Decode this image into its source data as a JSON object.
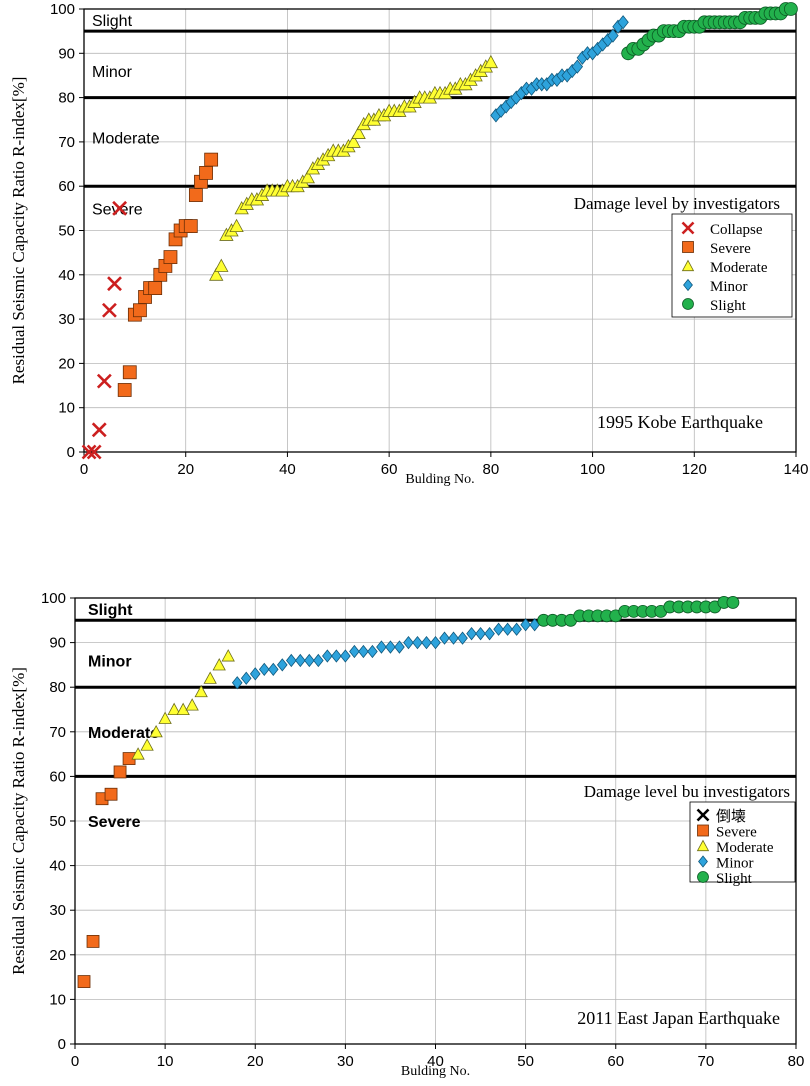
{
  "chart_data": [
    {
      "type": "scatter",
      "ylabel": "Residual Seismic Capacity Ratio R-index[%]",
      "xlabel": "Bulding No.",
      "xlim": [
        0,
        140
      ],
      "ylim": [
        0,
        100
      ],
      "x_ticks": [
        "0",
        "20",
        "40",
        "60",
        "80",
        "100",
        "120",
        "140"
      ],
      "y_ticks": [
        "0",
        "10",
        "20",
        "30",
        "40",
        "50",
        "60",
        "70",
        "80",
        "90",
        "100"
      ],
      "grid": true,
      "thresholds": [
        60,
        80,
        95
      ],
      "zones": [
        {
          "label": "Slight",
          "y": 97.5
        },
        {
          "label": "Minor",
          "y": 86
        },
        {
          "label": "Moderate",
          "y": 71
        },
        {
          "label": "Severe",
          "y": 55
        }
      ],
      "annotation": "1995 Kobe Earthquake",
      "legend_title": "Damage level by investigators",
      "legend_position": "right-middle",
      "series": [
        {
          "name": "Collapse",
          "marker": "x",
          "color": "#cc1f1f",
          "x": [
            1,
            2,
            3,
            4,
            5,
            6,
            7
          ],
          "y": [
            0,
            0,
            5,
            16,
            32,
            38,
            55
          ]
        },
        {
          "name": "Severe",
          "marker": "square",
          "color": "#f26a1b",
          "x": [
            8,
            9,
            10,
            11,
            12,
            13,
            14,
            15,
            16,
            17,
            18,
            19,
            20,
            21,
            22,
            23,
            24,
            25
          ],
          "y": [
            14,
            18,
            31,
            32,
            35,
            37,
            37,
            40,
            42,
            44,
            48,
            50,
            51,
            51,
            58,
            61,
            63,
            66
          ]
        },
        {
          "name": "Moderate",
          "marker": "triangle",
          "color": "#ffff33",
          "x": [
            26,
            27,
            28,
            29,
            30,
            31,
            32,
            33,
            34,
            35,
            36,
            37,
            38,
            39,
            40,
            41,
            42,
            43,
            44,
            45,
            46,
            47,
            48,
            49,
            50,
            51,
            52,
            53,
            54,
            55,
            56,
            57,
            58,
            59,
            60,
            61,
            62,
            63,
            64,
            65,
            66,
            67,
            68,
            69,
            70,
            71,
            72,
            73,
            74,
            75,
            76,
            77,
            78,
            79,
            80
          ],
          "y": [
            40,
            42,
            49,
            50,
            51,
            55,
            56,
            57,
            57,
            58,
            59,
            59,
            59,
            59,
            60,
            60,
            60,
            61,
            62,
            64,
            65,
            66,
            67,
            68,
            68,
            68,
            69,
            70,
            72,
            74,
            75,
            75,
            76,
            76,
            77,
            77,
            77,
            78,
            78,
            79,
            80,
            80,
            80,
            81,
            81,
            81,
            82,
            82,
            83,
            83,
            84,
            85,
            86,
            87,
            88
          ]
        },
        {
          "name": "Minor",
          "marker": "diamond",
          "color": "#2ea3dc",
          "x": [
            81,
            82,
            83,
            84,
            85,
            86,
            87,
            88,
            89,
            90,
            91,
            92,
            93,
            94,
            95,
            96,
            97,
            98,
            99,
            100,
            101,
            102,
            103,
            104,
            105,
            106
          ],
          "y": [
            76,
            77,
            78,
            79,
            80,
            81,
            82,
            82,
            83,
            83,
            83,
            84,
            84,
            85,
            85,
            86,
            87,
            89,
            90,
            90,
            91,
            92,
            93,
            94,
            96,
            97
          ]
        },
        {
          "name": "Slight",
          "marker": "circle",
          "color": "#22b14c",
          "x": [
            107,
            108,
            109,
            110,
            111,
            112,
            113,
            114,
            115,
            116,
            117,
            118,
            119,
            120,
            121,
            122,
            123,
            124,
            125,
            126,
            127,
            128,
            129,
            130,
            131,
            132,
            133,
            134,
            135,
            136,
            137,
            138,
            139
          ],
          "y": [
            90,
            91,
            91,
            92,
            93,
            94,
            94,
            95,
            95,
            95,
            95,
            96,
            96,
            96,
            96,
            97,
            97,
            97,
            97,
            97,
            97,
            97,
            97,
            98,
            98,
            98,
            98,
            99,
            99,
            99,
            99,
            100,
            100
          ]
        }
      ]
    },
    {
      "type": "scatter",
      "ylabel": "Residual Seismic Capacity Ratio R-index[%]",
      "xlabel": "Bulding No.",
      "xlim": [
        0,
        80
      ],
      "ylim": [
        0,
        100
      ],
      "x_ticks": [
        "0",
        "10",
        "20",
        "30",
        "40",
        "50",
        "60",
        "70",
        "80"
      ],
      "y_ticks": [
        "0",
        "10",
        "20",
        "30",
        "40",
        "50",
        "60",
        "70",
        "80",
        "90",
        "100"
      ],
      "grid": true,
      "thresholds": [
        60,
        80,
        95
      ],
      "zones": [
        {
          "label": "Slight",
          "y": 97.5
        },
        {
          "label": "Minor",
          "y": 86
        },
        {
          "label": "Moderate",
          "y": 70
        },
        {
          "label": "Severe",
          "y": 50
        }
      ],
      "annotation": "2011 East Japan Earthquake",
      "legend_title": "Damage level bu investigators",
      "legend_position": "right-middle",
      "series": [
        {
          "name": "倒壊",
          "marker": "x",
          "color": "#000000",
          "x": [],
          "y": []
        },
        {
          "name": "Severe",
          "marker": "square",
          "color": "#f26a1b",
          "x": [
            1,
            2,
            3,
            4,
            5,
            6
          ],
          "y": [
            14,
            23,
            55,
            56,
            61,
            64
          ]
        },
        {
          "name": "Moderate",
          "marker": "triangle",
          "color": "#ffff33",
          "x": [
            7,
            8,
            9,
            10,
            11,
            12,
            13,
            14,
            15,
            16,
            17
          ],
          "y": [
            65,
            67,
            70,
            73,
            75,
            75,
            76,
            79,
            82,
            85,
            87
          ]
        },
        {
          "name": "Minor",
          "marker": "diamond",
          "color": "#2ea3dc",
          "x": [
            18,
            19,
            20,
            21,
            22,
            23,
            24,
            25,
            26,
            27,
            28,
            29,
            30,
            31,
            32,
            33,
            34,
            35,
            36,
            37,
            38,
            39,
            40,
            41,
            42,
            43,
            44,
            45,
            46,
            47,
            48,
            49,
            50,
            51
          ],
          "y": [
            81,
            82,
            83,
            84,
            84,
            85,
            86,
            86,
            86,
            86,
            87,
            87,
            87,
            88,
            88,
            88,
            89,
            89,
            89,
            90,
            90,
            90,
            90,
            91,
            91,
            91,
            92,
            92,
            92,
            93,
            93,
            93,
            94,
            94
          ]
        },
        {
          "name": "Slight",
          "marker": "circle",
          "color": "#22b14c",
          "x": [
            52,
            53,
            54,
            55,
            56,
            57,
            58,
            59,
            60,
            61,
            62,
            63,
            64,
            65,
            66,
            67,
            68,
            69,
            70,
            71,
            72,
            73
          ],
          "y": [
            95,
            95,
            95,
            95,
            96,
            96,
            96,
            96,
            96,
            97,
            97,
            97,
            97,
            97,
            98,
            98,
            98,
            98,
            98,
            98,
            99,
            99
          ]
        }
      ]
    }
  ]
}
